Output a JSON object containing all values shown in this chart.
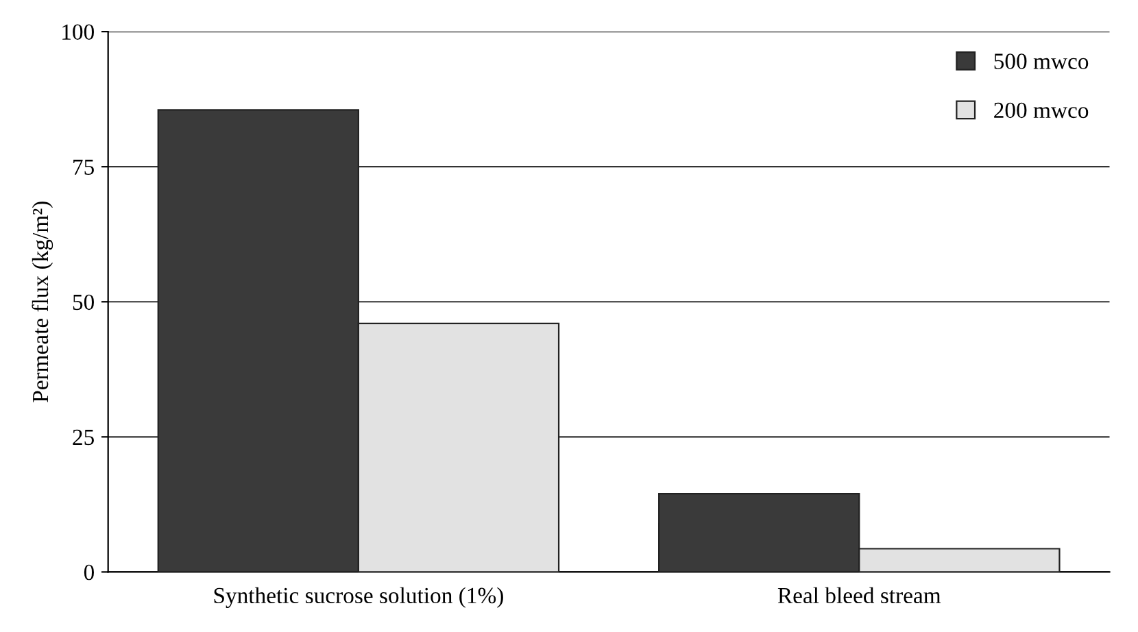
{
  "chart_data": {
    "type": "bar",
    "ylabel": "Permeate flux (kg/m²)",
    "categories": [
      "Synthetic sucrose solution (1%)",
      "Real bleed stream"
    ],
    "series": [
      {
        "name": "500 mwco",
        "color": "#3a3a3a",
        "values": [
          85.5,
          14.5
        ]
      },
      {
        "name": "200 mwco",
        "color": "#e2e2e2",
        "values": [
          46,
          4.3
        ]
      }
    ],
    "ylim": [
      0,
      100
    ],
    "yticks": [
      0,
      25,
      50,
      75,
      100
    ],
    "grid": "y",
    "legend": "top right"
  }
}
